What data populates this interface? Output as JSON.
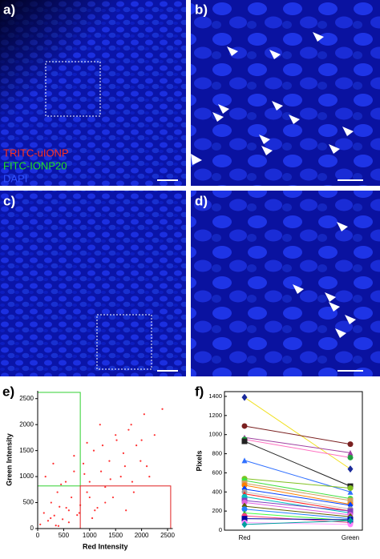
{
  "panels": [
    {
      "label": "a)"
    },
    {
      "label": "b)"
    },
    {
      "label": "c)"
    },
    {
      "label": "d)"
    }
  ],
  "legend": [
    "TRITC-uIONP",
    "FITC-IONP20",
    "DAPI"
  ],
  "chart_data": [
    {
      "type": "scatter",
      "panel_label": "e)",
      "xlabel": "Red Intensity",
      "ylabel": "Green Intensity",
      "color": "#ff3030",
      "xlim": [
        0,
        2600
      ],
      "ylim": [
        0,
        2650
      ],
      "xticks": [
        0,
        500,
        1000,
        1500,
        2000,
        2500
      ],
      "yticks": [
        0,
        500,
        1000,
        1500,
        2000,
        2500
      ],
      "gates": [
        {
          "color": "#30d030",
          "x": [
            0,
            820
          ],
          "y": [
            820,
            2620
          ]
        },
        {
          "color": "#e02020",
          "x": [
            820,
            2560
          ],
          "y": [
            0,
            820
          ]
        }
      ],
      "x": [
        50,
        120,
        200,
        260,
        320,
        380,
        420,
        480,
        540,
        600,
        650,
        700,
        760,
        820,
        880,
        950,
        1000,
        1080,
        1150,
        1220,
        1300,
        1380,
        1450,
        1520,
        1600,
        1680,
        1750,
        1820,
        1900,
        1980,
        2050,
        2150,
        2250,
        2400,
        150,
        300,
        450,
        700,
        900,
        1100,
        1250,
        1400,
        1650,
        1850,
        2000,
        600,
        350,
        800,
        1050,
        1300,
        1500,
        1200,
        950,
        1700,
        2100,
        250,
        550,
        400,
        1000,
        1800
      ],
      "y": [
        80,
        300,
        150,
        500,
        250,
        700,
        420,
        180,
        900,
        350,
        600,
        1100,
        260,
        450,
        1250,
        700,
        900,
        1500,
        400,
        1100,
        800,
        1300,
        600,
        1700,
        1000,
        1200,
        1900,
        900,
        1600,
        1300,
        2200,
        1000,
        1800,
        2300,
        1000,
        1250,
        850,
        1400,
        1050,
        350,
        1600,
        950,
        1450,
        700,
        1700,
        120,
        60,
        300,
        200,
        500,
        1800,
        2000,
        1650,
        350,
        1200,
        200,
        400,
        50,
        600,
        2000
      ]
    },
    {
      "type": "line",
      "panel_label": "f)",
      "ylabel": "Pixels",
      "categories": [
        "Red",
        "Green"
      ],
      "ylim": [
        0,
        1450
      ],
      "yticks": [
        0,
        200,
        400,
        600,
        800,
        1000,
        1200,
        1400
      ],
      "series": [
        {
          "color": "#f0e020",
          "marker": "diamond",
          "marker_color": "#1a2a9a",
          "values": [
            1390,
            640
          ]
        },
        {
          "color": "#7a2020",
          "marker": "circle",
          "marker_color": "#7a2020",
          "values": [
            1090,
            900
          ]
        },
        {
          "color": "#a040a0",
          "marker": "triangle",
          "marker_color": "#a040a0",
          "values": [
            970,
            810
          ]
        },
        {
          "color": "#ff70c0",
          "marker": "circle",
          "marker_color": "#20a040",
          "values": [
            950,
            760
          ]
        },
        {
          "color": "#222222",
          "marker": "square",
          "marker_color": "#222222",
          "values": [
            930,
            460
          ]
        },
        {
          "color": "#3070ff",
          "marker": "triangle",
          "marker_color": "#3070ff",
          "values": [
            730,
            400
          ]
        },
        {
          "color": "#80c020",
          "marker": "circle",
          "marker_color": "#80c020",
          "values": [
            540,
            440
          ]
        },
        {
          "color": "#40e040",
          "marker": "circle",
          "marker_color": "#40e040",
          "values": [
            520,
            330
          ]
        },
        {
          "color": "#d0a060",
          "marker": "square",
          "marker_color": "#d0a060",
          "values": [
            490,
            310
          ]
        },
        {
          "color": "#ff8000",
          "marker": "circle",
          "marker_color": "#ff8000",
          "values": [
            470,
            270
          ]
        },
        {
          "color": "#0040ff",
          "marker": "diamond",
          "marker_color": "#0040ff",
          "values": [
            430,
            260
          ]
        },
        {
          "color": "#c0c0c0",
          "marker": "circle",
          "marker_color": "#a0a0a0",
          "values": [
            400,
            220
          ]
        },
        {
          "color": "#ff2020",
          "marker": "triangle",
          "marker_color": "#ff2020",
          "values": [
            380,
            200
          ]
        },
        {
          "color": "#00c0c0",
          "marker": "circle",
          "marker_color": "#00c0c0",
          "values": [
            350,
            180
          ]
        },
        {
          "color": "#8040c0",
          "marker": "square",
          "marker_color": "#8040c0",
          "values": [
            310,
            200
          ]
        },
        {
          "color": "#e060e0",
          "marker": "circle",
          "marker_color": "#e060e0",
          "values": [
            290,
            160
          ]
        },
        {
          "color": "#606000",
          "marker": "diamond",
          "marker_color": "#606000",
          "values": [
            250,
            140
          ]
        },
        {
          "color": "#2080ff",
          "marker": "circle",
          "marker_color": "#2080ff",
          "values": [
            220,
            120
          ]
        },
        {
          "color": "#40ff40",
          "marker": "triangle",
          "marker_color": "#30c030",
          "values": [
            180,
            100
          ]
        },
        {
          "color": "#ff4080",
          "marker": "circle",
          "marker_color": "#ff4080",
          "values": [
            150,
            80
          ]
        },
        {
          "color": "#0000a0",
          "marker": "square",
          "marker_color": "#0000a0",
          "values": [
            120,
            110
          ]
        },
        {
          "color": "#ffa0ff",
          "marker": "circle",
          "marker_color": "#ff80ff",
          "values": [
            80,
            60
          ]
        },
        {
          "color": "#00a0a0",
          "marker": "diamond",
          "marker_color": "#00a0a0",
          "values": [
            60,
            100
          ]
        }
      ]
    }
  ]
}
